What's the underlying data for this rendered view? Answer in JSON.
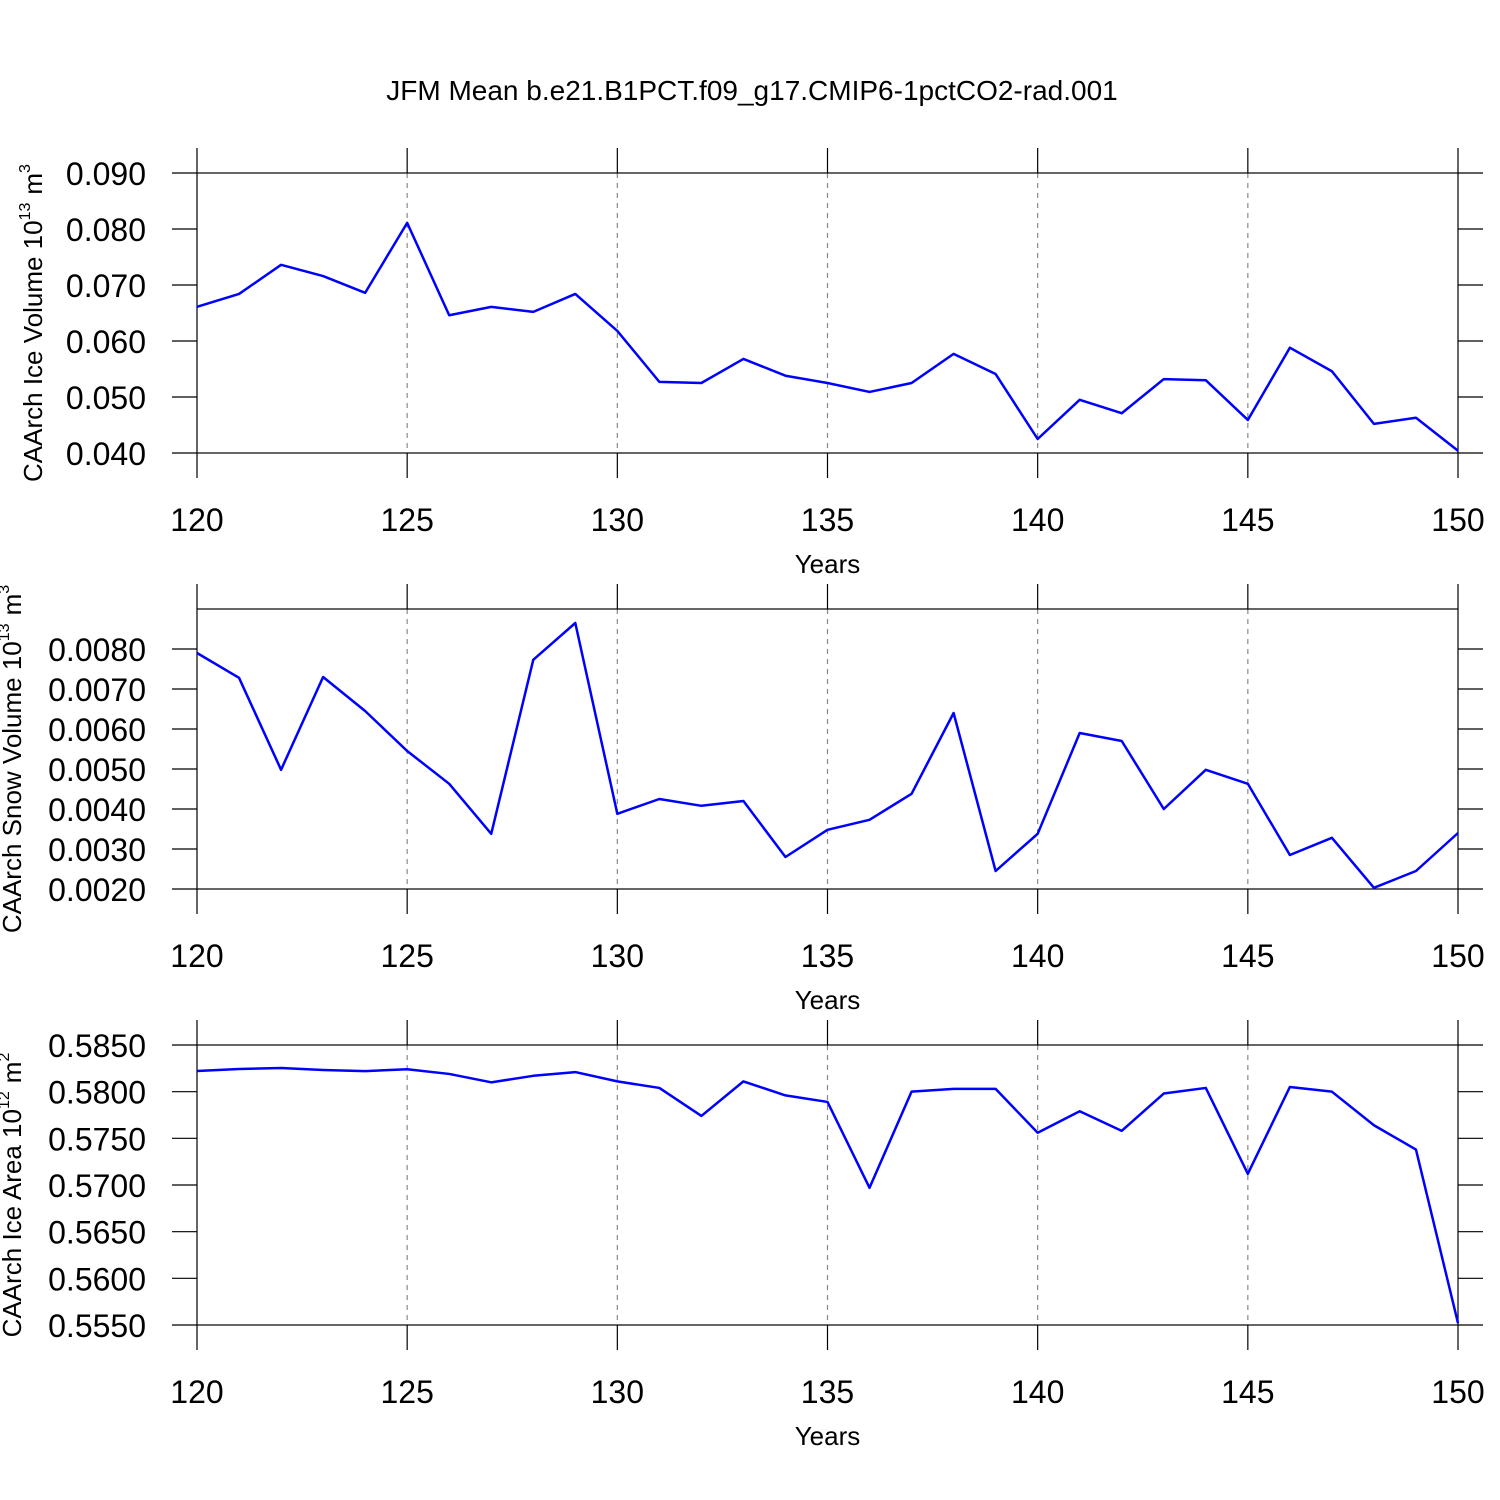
{
  "chart_data": [
    {
      "type": "line",
      "title": "JFM Mean b.e21.B1PCT.f09_g17.CMIP6-1pctCO2-rad.001",
      "xlabel": "Years",
      "ylabel": "CAArch Ice Volume 10",
      "ylabel_exp": "13",
      "ylabel_unit": "m",
      "ylabel_unit_exp": "3",
      "x": [
        120,
        121,
        122,
        123,
        124,
        125,
        126,
        127,
        128,
        129,
        130,
        131,
        132,
        133,
        134,
        135,
        136,
        137,
        138,
        139,
        140,
        141,
        142,
        143,
        144,
        145,
        146,
        147,
        148,
        149,
        150
      ],
      "values": [
        0.0661,
        0.0684,
        0.0736,
        0.0716,
        0.0686,
        0.0811,
        0.0646,
        0.0661,
        0.0652,
        0.0684,
        0.0618,
        0.0527,
        0.0525,
        0.0568,
        0.0538,
        0.0525,
        0.0509,
        0.0525,
        0.0577,
        0.0541,
        0.0425,
        0.0495,
        0.0471,
        0.0532,
        0.053,
        0.0459,
        0.0588,
        0.0546,
        0.0452,
        0.0463,
        0.0404
      ],
      "color": "#0000ff",
      "xlim": [
        120,
        150
      ],
      "xticks": [
        120,
        125,
        130,
        135,
        140,
        145,
        150
      ],
      "xgrid": true,
      "ylim": [
        0.04,
        0.09
      ],
      "yticks": [
        {
          "value": 0.04,
          "label": "0.040"
        },
        {
          "value": 0.05,
          "label": "0.050"
        },
        {
          "value": 0.06,
          "label": "0.060"
        },
        {
          "value": 0.07,
          "label": "0.070"
        },
        {
          "value": 0.08,
          "label": "0.080"
        },
        {
          "value": 0.09,
          "label": "0.090"
        }
      ]
    },
    {
      "type": "line",
      "xlabel": "Years",
      "ylabel": "CAArch Snow Volume 10",
      "ylabel_exp": "13",
      "ylabel_unit": "m",
      "ylabel_unit_exp": "3",
      "x": [
        120,
        121,
        122,
        123,
        124,
        125,
        126,
        127,
        128,
        129,
        130,
        131,
        132,
        133,
        134,
        135,
        136,
        137,
        138,
        139,
        140,
        141,
        142,
        143,
        144,
        145,
        146,
        147,
        148,
        149,
        150
      ],
      "values": [
        0.0079,
        0.00728,
        0.00498,
        0.0073,
        0.00645,
        0.00545,
        0.00463,
        0.00338,
        0.00773,
        0.00865,
        0.00388,
        0.00425,
        0.00408,
        0.0042,
        0.0028,
        0.00348,
        0.00373,
        0.00438,
        0.0064,
        0.00245,
        0.00338,
        0.0059,
        0.0057,
        0.004,
        0.00498,
        0.00463,
        0.00285,
        0.00328,
        0.00203,
        0.00245,
        0.0034
      ],
      "color": "#0000ff",
      "xlim": [
        120,
        150
      ],
      "xticks": [
        120,
        125,
        130,
        135,
        140,
        145,
        150
      ],
      "xgrid": true,
      "ylim": [
        0.002,
        0.009
      ],
      "yticks": [
        {
          "value": 0.002,
          "label": "0.0020"
        },
        {
          "value": 0.003,
          "label": "0.0030"
        },
        {
          "value": 0.004,
          "label": "0.0040"
        },
        {
          "value": 0.005,
          "label": "0.0050"
        },
        {
          "value": 0.006,
          "label": "0.0060"
        },
        {
          "value": 0.007,
          "label": "0.0070"
        },
        {
          "value": 0.008,
          "label": "0.0080"
        }
      ]
    },
    {
      "type": "line",
      "xlabel": "Years",
      "ylabel": "CAArch Ice Area 10",
      "ylabel_exp": "12",
      "ylabel_unit": "m",
      "ylabel_unit_exp": "2",
      "x": [
        120,
        121,
        122,
        123,
        124,
        125,
        126,
        127,
        128,
        129,
        130,
        131,
        132,
        133,
        134,
        135,
        136,
        137,
        138,
        139,
        140,
        141,
        142,
        143,
        144,
        145,
        146,
        147,
        148,
        149,
        150
      ],
      "values": [
        0.58221,
        0.58243,
        0.58254,
        0.58232,
        0.5822,
        0.5824,
        0.5819,
        0.581,
        0.5817,
        0.5821,
        0.5811,
        0.5804,
        0.5774,
        0.5811,
        0.5796,
        0.5789,
        0.5697,
        0.58,
        0.5803,
        0.5803,
        0.5756,
        0.5779,
        0.5758,
        0.5798,
        0.5804,
        0.5712,
        0.5805,
        0.58,
        0.5764,
        0.5738,
        0.5552
      ],
      "color": "#0000ff",
      "xlim": [
        120,
        150
      ],
      "xticks": [
        120,
        125,
        130,
        135,
        140,
        145,
        150
      ],
      "xgrid": true,
      "ylim": [
        0.555,
        0.585
      ],
      "yticks": [
        {
          "value": 0.555,
          "label": "0.5550"
        },
        {
          "value": 0.56,
          "label": "0.5600"
        },
        {
          "value": 0.565,
          "label": "0.5650"
        },
        {
          "value": 0.57,
          "label": "0.5700"
        },
        {
          "value": 0.575,
          "label": "0.5750"
        },
        {
          "value": 0.58,
          "label": "0.5800"
        },
        {
          "value": 0.585,
          "label": "0.5850"
        }
      ]
    }
  ]
}
